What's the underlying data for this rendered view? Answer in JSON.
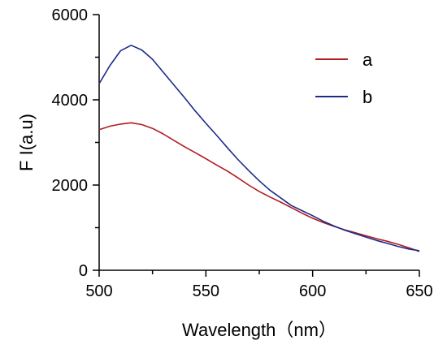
{
  "chart_data": {
    "type": "line",
    "title": "",
    "xlabel": "Wavelength（nm）",
    "ylabel": "F I(a.u)",
    "xlim": [
      500,
      650
    ],
    "ylim": [
      0,
      6000
    ],
    "xticks": [
      500,
      550,
      600,
      650
    ],
    "yticks": [
      0,
      2000,
      4000,
      6000
    ],
    "grid": false,
    "legend_position": "top-right",
    "series": [
      {
        "name": "a",
        "color": "#b01c22",
        "x": [
          500,
          505,
          510,
          515,
          520,
          525,
          530,
          535,
          540,
          545,
          550,
          555,
          560,
          565,
          570,
          575,
          580,
          585,
          590,
          595,
          600,
          605,
          610,
          615,
          620,
          625,
          630,
          635,
          640,
          645,
          650
        ],
        "y": [
          3300,
          3380,
          3430,
          3460,
          3420,
          3330,
          3200,
          3050,
          2900,
          2760,
          2620,
          2470,
          2330,
          2170,
          2000,
          1850,
          1720,
          1600,
          1470,
          1340,
          1220,
          1120,
          1030,
          950,
          880,
          810,
          740,
          680,
          610,
          530,
          440
        ]
      },
      {
        "name": "b",
        "color": "#1f2a8a",
        "x": [
          500,
          505,
          510,
          515,
          520,
          525,
          530,
          535,
          540,
          545,
          550,
          555,
          560,
          565,
          570,
          575,
          580,
          585,
          590,
          595,
          600,
          605,
          610,
          615,
          620,
          625,
          630,
          635,
          640,
          645,
          650
        ],
        "y": [
          4380,
          4800,
          5150,
          5280,
          5170,
          4950,
          4650,
          4350,
          4050,
          3740,
          3450,
          3170,
          2880,
          2600,
          2340,
          2100,
          1880,
          1700,
          1520,
          1400,
          1280,
          1150,
          1040,
          940,
          860,
          780,
          700,
          630,
          560,
          500,
          460
        ]
      }
    ]
  }
}
